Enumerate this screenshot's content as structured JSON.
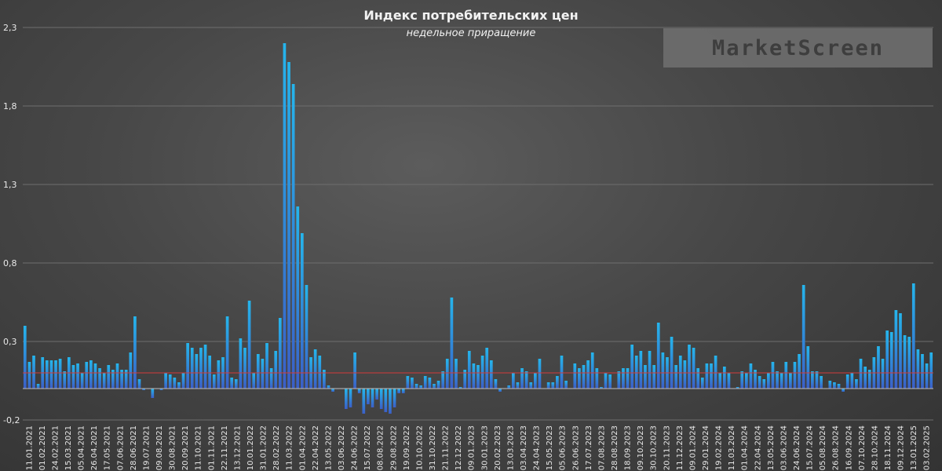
{
  "chart_data": {
    "type": "bar",
    "title": "Индекс потребительских цен",
    "subtitle": "недельное приращение",
    "xlabel": "",
    "ylabel": "",
    "ylim": [
      -0.2,
      2.3
    ],
    "yticks": [
      -0.2,
      0.3,
      0.8,
      1.3,
      1.8,
      2.3
    ],
    "ytick_labels": [
      "-0,2",
      "0,3",
      "0,8",
      "1,3",
      "1,8",
      "2,3"
    ],
    "grid": true,
    "legend": "none",
    "reference_line": 0.1,
    "xtick_labels": [
      "11.01.2021",
      "01.02.2021",
      "24.02.2021",
      "15.03.2021",
      "05.04.2021",
      "26.04.2021",
      "17.05.2021",
      "07.06.2021",
      "28.06.2021",
      "19.07.2021",
      "09.08.2021",
      "30.08.2021",
      "20.09.2021",
      "11.10.2021",
      "01.11.2021",
      "22.11.2021",
      "13.12.2021",
      "10.01.2022",
      "31.01.2022",
      "28.02.2022",
      "11.03.2022",
      "01.04.2022",
      "22.04.2022",
      "13.05.2022",
      "03.06.2022",
      "24.06.2022",
      "15.07.2022",
      "08.08.2022",
      "29.08.2022",
      "19.09.2022",
      "10.10.2022",
      "31.10.2022",
      "21.11.2022",
      "12.12.2022",
      "09.01.2023",
      "30.01.2023",
      "20.02.2023",
      "13.03.2023",
      "03.04.2023",
      "24.04.2023",
      "15.05.2023",
      "05.06.2023",
      "26.06.2023",
      "17.07.2023",
      "07.08.2023",
      "28.08.2023",
      "18.09.2023",
      "09.10.2023",
      "30.10.2023",
      "20.11.2023",
      "11.12.2023",
      "09.01.2024",
      "29.01.2024",
      "19.02.2024",
      "11.03.2024",
      "01.04.2024",
      "22.04.2024",
      "13.05.2024",
      "03.06.2024",
      "24.06.2024",
      "15.07.2024",
      "05.08.2024",
      "26.08.2024",
      "16.09.2024",
      "07.10.2024",
      "28.10.2024",
      "18.11.2024",
      "09.12.2024",
      "13.01.2025",
      "03.02.2025"
    ],
    "values": [
      0.4,
      0.17,
      0.21,
      0.03,
      0.2,
      0.18,
      0.18,
      0.18,
      0.19,
      0.11,
      0.2,
      0.15,
      0.16,
      0.1,
      0.17,
      0.18,
      0.16,
      0.13,
      0.1,
      0.15,
      0.12,
      0.16,
      0.12,
      0.12,
      0.23,
      0.46,
      0.06,
      -0.01,
      0.0,
      -0.06,
      0.0,
      -0.01,
      0.1,
      0.09,
      0.07,
      0.04,
      0.1,
      0.29,
      0.26,
      0.22,
      0.26,
      0.28,
      0.21,
      0.09,
      0.18,
      0.2,
      0.46,
      0.07,
      0.06,
      0.32,
      0.26,
      0.56,
      0.1,
      0.22,
      0.19,
      0.29,
      0.13,
      0.24,
      0.45,
      2.2,
      2.08,
      1.94,
      1.16,
      0.99,
      0.66,
      0.2,
      0.25,
      0.21,
      0.12,
      0.02,
      -0.02,
      0.0,
      0.0,
      -0.13,
      -0.12,
      0.23,
      -0.03,
      -0.16,
      -0.1,
      -0.12,
      -0.07,
      -0.13,
      -0.15,
      -0.16,
      -0.12,
      -0.03,
      -0.03,
      0.08,
      0.07,
      0.03,
      0.02,
      0.08,
      0.07,
      0.03,
      0.05,
      0.11,
      0.19,
      0.58,
      0.19,
      0.01,
      0.12,
      0.24,
      0.16,
      0.15,
      0.21,
      0.26,
      0.18,
      0.06,
      -0.02,
      0.0,
      0.02,
      0.1,
      0.04,
      0.13,
      0.11,
      0.04,
      0.1,
      0.19,
      0.0,
      0.04,
      0.04,
      0.08,
      0.21,
      0.05,
      0.0,
      0.16,
      0.13,
      0.15,
      0.18,
      0.23,
      0.13,
      0.01,
      0.1,
      0.09,
      0.0,
      0.11,
      0.13,
      0.13,
      0.28,
      0.21,
      0.24,
      0.15,
      0.24,
      0.15,
      0.42,
      0.23,
      0.2,
      0.33,
      0.15,
      0.21,
      0.18,
      0.28,
      0.26,
      0.13,
      0.07,
      0.16,
      0.16,
      0.21,
      0.1,
      0.14,
      0.1,
      0.0,
      0.01,
      0.11,
      0.1,
      0.16,
      0.12,
      0.08,
      0.06,
      0.1,
      0.17,
      0.11,
      0.1,
      0.17,
      0.1,
      0.17,
      0.22,
      0.66,
      0.27,
      0.11,
      0.11,
      0.08,
      0.0,
      0.05,
      0.04,
      0.03,
      -0.02,
      0.09,
      0.1,
      0.06,
      0.19,
      0.14,
      0.12,
      0.2,
      0.27,
      0.19,
      0.37,
      0.36,
      0.5,
      0.48,
      0.34,
      0.33,
      0.67,
      0.25,
      0.22,
      0.16,
      0.23
    ]
  },
  "watermark_text": "MarketScreen",
  "colors": {
    "bar_top": "#25b5ec",
    "bar_bottom": "#3b5fc7",
    "reference_line": "#d23b3b",
    "gridline": "#6e6e6e",
    "zero_line": "#bdbdbd"
  }
}
